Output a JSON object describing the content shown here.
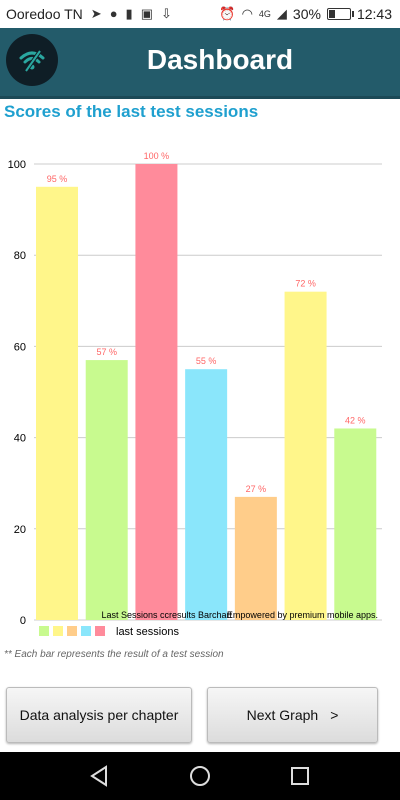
{
  "status_bar": {
    "carrier": "Ooredoo TN",
    "battery": "30%",
    "battery_level": 0.3,
    "network": "4G",
    "time": "12:43"
  },
  "header": {
    "title": "Dashboard"
  },
  "section_title": "Scores of the last test sessions",
  "chart_data": {
    "type": "bar",
    "values": [
      95,
      57,
      100,
      55,
      27,
      72,
      42
    ],
    "data_labels": [
      "95 %",
      "57 %",
      "100 %",
      "55 %",
      "27 %",
      "72 %",
      "42 %"
    ],
    "colors": [
      "#fff68a",
      "#c8fa8f",
      "#ff8b9b",
      "#8ae6fb",
      "#ffcd8a",
      "#fff68a",
      "#c8fa8f"
    ],
    "yticks": [
      0,
      20,
      40,
      60,
      80,
      100
    ],
    "ylim": [
      0,
      100
    ],
    "grid": true,
    "description": "Last Sessions ccresults Barchart",
    "credit": "Empowered by premium mobile apps.",
    "series": [
      {
        "name": "last sessions"
      }
    ],
    "legend_swatches": [
      "#c8fa8f",
      "#fff68a",
      "#ffcd8a",
      "#8ae6fb",
      "#ff8b9b"
    ],
    "legend_position": "bottom-left"
  },
  "footnote": "** Each bar represents the result of a test session",
  "buttons": {
    "data_analysis": "Data analysis per chapter",
    "next_graph": "Next Graph",
    "next_arrow": ">"
  }
}
